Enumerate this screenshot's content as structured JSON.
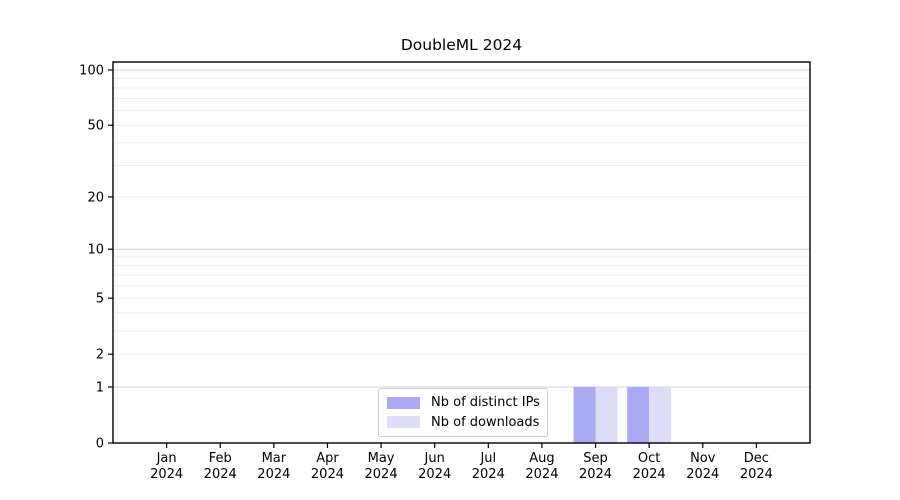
{
  "figure": {
    "background": "#ffffff",
    "text_color": "#000000"
  },
  "chart_data": {
    "type": "bar",
    "title": "DoubleML 2024",
    "x": {
      "months": [
        "Jan",
        "Feb",
        "Mar",
        "Apr",
        "May",
        "Jun",
        "Jul",
        "Aug",
        "Sep",
        "Oct",
        "Nov",
        "Dec"
      ],
      "year": "2024"
    },
    "series": [
      {
        "name": "Nb of distinct IPs",
        "color": "#aaaaf4",
        "values": [
          0,
          0,
          0,
          0,
          0,
          0,
          0,
          0,
          1,
          1,
          0,
          0
        ]
      },
      {
        "name": "Nb of downloads",
        "color": "#ddddfa",
        "values": [
          0,
          0,
          0,
          0,
          0,
          0,
          0,
          0,
          1,
          1,
          0,
          0
        ]
      }
    ],
    "yscale": "log1p",
    "ylim": [
      0,
      110.5
    ],
    "yticks": [
      0,
      1,
      2,
      5,
      10,
      20,
      50,
      100
    ],
    "grid": {
      "major_lines": [
        1,
        10,
        100
      ],
      "minor_lines": [
        2,
        3,
        4,
        5,
        6,
        7,
        8,
        9,
        20,
        30,
        40,
        50,
        60,
        70,
        80,
        90
      ],
      "major_color": "#d2d2d2",
      "minor_color": "#ececec"
    },
    "legend_position": "lower center"
  }
}
